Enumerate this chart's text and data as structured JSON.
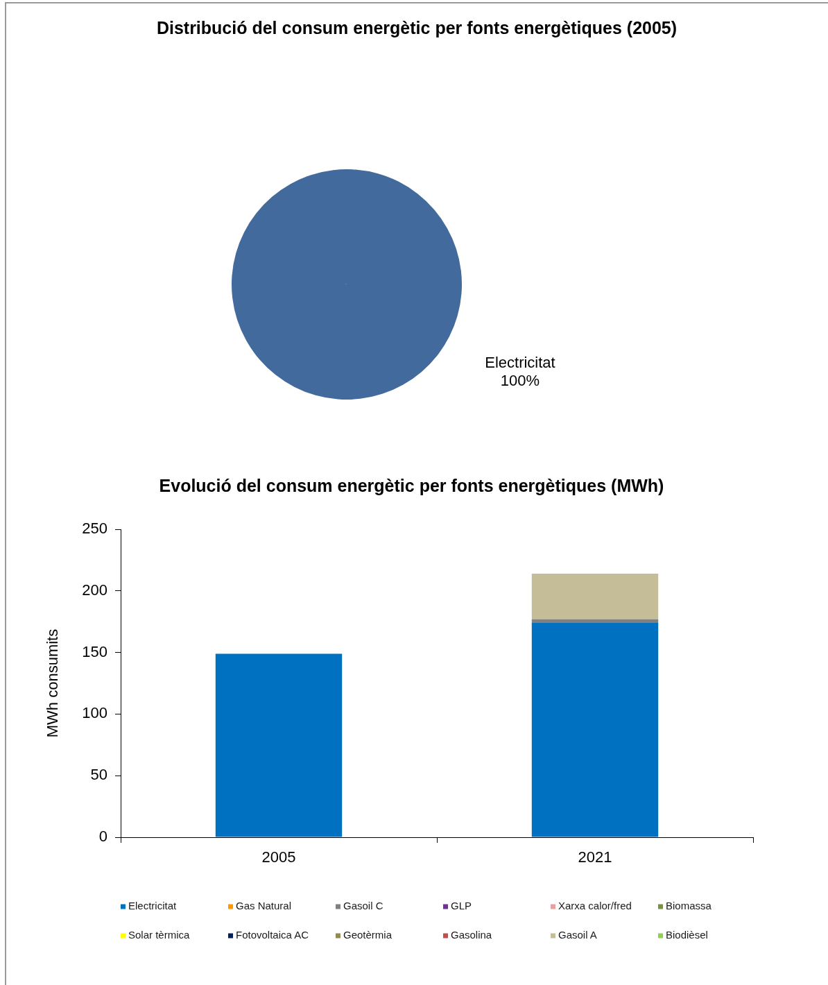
{
  "chart_data": [
    {
      "type": "pie",
      "title": "Distribució del consum energètic per fonts energètiques (2005)",
      "categories": [
        "Electricitat"
      ],
      "values": [
        100
      ],
      "colors": [
        "#426a9c"
      ],
      "value_labels": [
        "100%"
      ]
    },
    {
      "type": "bar",
      "title": "Evolució del consum energètic per fonts energètiques (MWh)",
      "categories": [
        "2005",
        "2021"
      ],
      "ylabel": "MWh consumits",
      "ylim": [
        0,
        250
      ],
      "yticks": [
        0,
        50,
        100,
        150,
        200,
        250
      ],
      "stacked": true,
      "grid": false,
      "legend": "bottom",
      "series": [
        {
          "name": "Electricitat",
          "color": "#0070c0",
          "values": [
            149,
            174
          ]
        },
        {
          "name": "Gas Natural",
          "color": "#ff9900",
          "values": [
            0,
            0
          ]
        },
        {
          "name": "Gasoil C",
          "color": "#808080",
          "values": [
            0,
            3
          ]
        },
        {
          "name": "GLP",
          "color": "#7030a0",
          "values": [
            0,
            0
          ]
        },
        {
          "name": "Xarxa calor/fred",
          "color": "#e6a0a0",
          "values": [
            0,
            0
          ]
        },
        {
          "name": "Biomassa",
          "color": "#77933c",
          "values": [
            0,
            0
          ]
        },
        {
          "name": "Solar tèrmica",
          "color": "#ffff00",
          "values": [
            0,
            0
          ]
        },
        {
          "name": "Fotovoltaica AC",
          "color": "#002060",
          "values": [
            0,
            0
          ]
        },
        {
          "name": "Geotèrmia",
          "color": "#948a54",
          "values": [
            0,
            0
          ]
        },
        {
          "name": "Gasolina",
          "color": "#c0504d",
          "values": [
            0,
            0
          ]
        },
        {
          "name": "Gasoil A",
          "color": "#c4bd97",
          "values": [
            0,
            37
          ]
        },
        {
          "name": "Biodièsel",
          "color": "#92d050",
          "values": [
            0,
            0
          ]
        }
      ]
    }
  ]
}
